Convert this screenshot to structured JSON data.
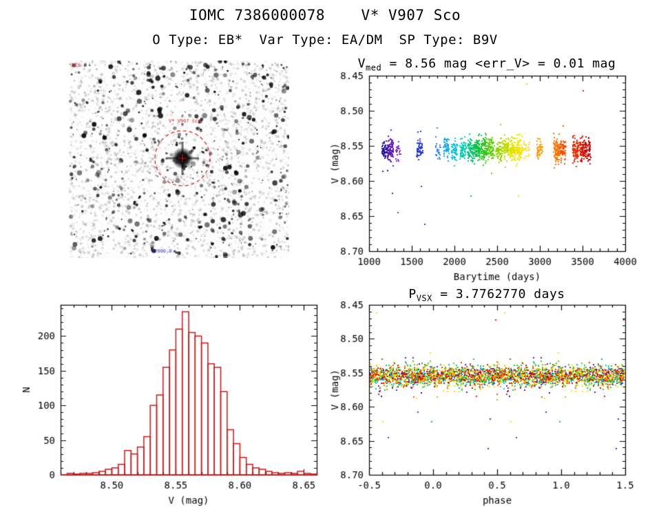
{
  "header": {
    "title": "IOMC 7386000078    V* V907 Sco",
    "subtitle": "O Type: EB*  Var Type: EA/DM  SP Type: B9V"
  },
  "finder": {
    "description": "grayscale DSS finding chart with target circled",
    "top_left_text": "DSS",
    "star_label": "V* V907 Sco",
    "bottom_text": "J2000.0",
    "label_color": "#cc2020",
    "bottom_color": "#3a3ad0",
    "circle_color": "#cc2020"
  },
  "chart_data": [
    {
      "id": "lightcurve",
      "type": "scatter",
      "title": {
        "pre": "V",
        "sub": "med",
        "post": " = 8.56 mag <err_V> = 0.01 mag"
      },
      "xlabel": "Barytime (days)",
      "ylabel": "V (mag)",
      "xlim": [
        1000,
        4000
      ],
      "ylim": [
        8.45,
        8.7
      ],
      "y_axis_inverted": true,
      "xticks": [
        1000,
        1500,
        2000,
        2500,
        3000,
        3500,
        4000
      ],
      "xtick_labels": [
        "1000",
        "1500",
        "2000",
        "2500",
        "3000",
        "3500",
        "4000"
      ],
      "yticks": [
        8.45,
        8.5,
        8.55,
        8.6,
        8.65,
        8.7
      ],
      "ytick_labels": [
        "8.45",
        "8.50",
        "8.55",
        "8.60",
        "8.65",
        "8.70"
      ],
      "xminor": 100,
      "yminor": 0.01,
      "grid": false,
      "marker": "square-dot",
      "y_center": 8.555,
      "clusters": [
        {
          "x": 1185,
          "color": "#1d12a2",
          "n": 60,
          "spread": 0.012,
          "outliers": [
            [
              30,
              8.585
            ]
          ]
        },
        {
          "x": 1250,
          "color": "#5a14b8",
          "n": 85,
          "spread": 0.014,
          "outliers": [
            [
              25,
              8.618
            ]
          ]
        },
        {
          "x": 1335,
          "color": "#7c28c8",
          "n": 22,
          "spread": 0.012,
          "outliers": [
            [
              5,
              8.645
            ]
          ]
        },
        {
          "x": 1595,
          "color": "#2438e0",
          "n": 55,
          "spread": 0.013,
          "outliers": [
            [
              15,
              8.608
            ],
            [
              55,
              8.662
            ]
          ]
        },
        {
          "x": 1805,
          "color": "#2f7dee",
          "n": 24,
          "spread": 0.012,
          "outliers": []
        },
        {
          "x": 1905,
          "color": "#13a6e6",
          "n": 55,
          "spread": 0.014,
          "outliers": []
        },
        {
          "x": 2000,
          "color": "#00c2e2",
          "n": 60,
          "spread": 0.014,
          "outliers": []
        },
        {
          "x": 2100,
          "color": "#00cdb4",
          "n": 65,
          "spread": 0.014,
          "outliers": []
        },
        {
          "x": 2190,
          "color": "#00c878",
          "n": 80,
          "spread": 0.015,
          "outliers": [
            [
              0,
              8.622
            ]
          ]
        },
        {
          "x": 2265,
          "color": "#0cc43e",
          "n": 95,
          "spread": 0.016,
          "outliers": []
        },
        {
          "x": 2345,
          "color": "#30c81e",
          "n": 90,
          "spread": 0.015,
          "outliers": []
        },
        {
          "x": 2430,
          "color": "#5ecf0a",
          "n": 80,
          "spread": 0.015,
          "outliers": []
        },
        {
          "x": 2520,
          "color": "#95d400",
          "n": 70,
          "spread": 0.014,
          "outliers": []
        },
        {
          "x": 2600,
          "color": "#c0da00",
          "n": 75,
          "spread": 0.014,
          "outliers": []
        },
        {
          "x": 2680,
          "color": "#e2e200",
          "n": 85,
          "spread": 0.015,
          "outliers": []
        },
        {
          "x": 2760,
          "color": "#f0e400",
          "n": 95,
          "spread": 0.016,
          "outliers": [
            [
              -10,
              8.622
            ]
          ]
        },
        {
          "x": 2845,
          "color": "#ffd800",
          "n": 18,
          "spread": 0.012,
          "outliers": [
            [
              0,
              8.462
            ]
          ]
        },
        {
          "x": 3000,
          "color": "#ff9c00",
          "n": 45,
          "spread": 0.013,
          "outliers": []
        },
        {
          "x": 3195,
          "color": "#ff7200",
          "n": 95,
          "spread": 0.015,
          "outliers": []
        },
        {
          "x": 3270,
          "color": "#fc5000",
          "n": 70,
          "spread": 0.015,
          "outliers": []
        },
        {
          "x": 3420,
          "color": "#ef2d00",
          "n": 85,
          "spread": 0.015,
          "outliers": []
        },
        {
          "x": 3500,
          "color": "#df1200",
          "n": 75,
          "spread": 0.015,
          "outliers": [
            [
              10,
              8.472
            ]
          ]
        },
        {
          "x": 3560,
          "color": "#c40404",
          "n": 60,
          "spread": 0.014,
          "outliers": []
        }
      ]
    },
    {
      "id": "histogram",
      "type": "histogram",
      "color": "#cc1414",
      "xlabel": "V (mag)",
      "ylabel": "N",
      "xlim": [
        8.46,
        8.66
      ],
      "ylim": [
        0,
        245
      ],
      "xticks": [
        8.5,
        8.55,
        8.6,
        8.65
      ],
      "xtick_labels": [
        "8.50",
        "8.55",
        "8.60",
        "8.65"
      ],
      "yticks": [
        0,
        50,
        100,
        150,
        200
      ],
      "ytick_labels": [
        "0",
        "50",
        "100",
        "150",
        "200"
      ],
      "xminor": 0.01,
      "yminor": 10,
      "bin_start": 8.46,
      "bin_width": 0.005,
      "values": [
        0,
        2,
        1,
        2,
        2,
        3,
        5,
        8,
        10,
        15,
        35,
        30,
        40,
        55,
        100,
        115,
        155,
        180,
        210,
        235,
        205,
        200,
        190,
        160,
        155,
        120,
        65,
        45,
        25,
        15,
        10,
        8,
        5,
        3,
        2,
        3,
        2,
        5,
        2,
        1
      ]
    },
    {
      "id": "phase",
      "type": "scatter",
      "title": {
        "pre": "P",
        "sub": "VSX",
        "post": " = 3.7762770 days"
      },
      "xlabel": "phase",
      "ylabel": "V (mag)",
      "xlim": [
        -0.5,
        1.5
      ],
      "ylim": [
        8.45,
        8.7
      ],
      "y_axis_inverted": true,
      "xticks": [
        -0.5,
        0.0,
        0.5,
        1.0,
        1.5
      ],
      "xtick_labels": [
        "-0.5",
        "0.0",
        "0.5",
        "1.0",
        "1.5"
      ],
      "yticks": [
        8.45,
        8.5,
        8.55,
        8.6,
        8.65,
        8.7
      ],
      "ytick_labels": [
        "8.45",
        "8.50",
        "8.55",
        "8.60",
        "8.65",
        "8.70"
      ],
      "xminor": 0.1,
      "yminor": 0.01,
      "y_center": 8.555,
      "source": "same data as lightcurve, folded on the period; colors match observing epochs"
    }
  ]
}
